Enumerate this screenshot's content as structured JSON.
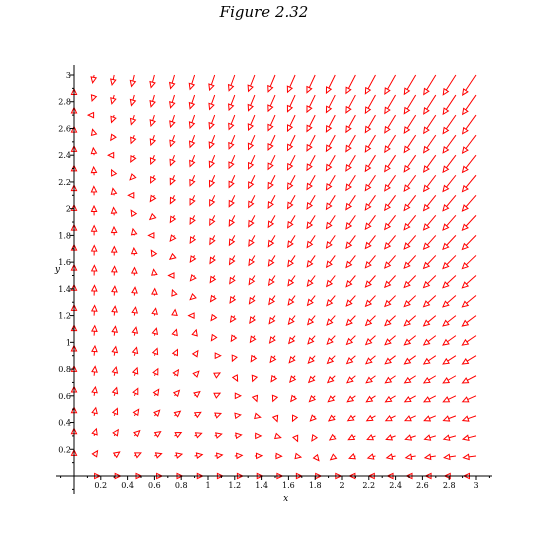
{
  "chart_data": {
    "type": "vector-field",
    "title": "Figure 2.32",
    "xlabel": "x",
    "ylabel": "y",
    "xlim": [
      0,
      3
    ],
    "ylim": [
      0,
      3
    ],
    "x_ticks": [
      "0.2",
      "0.4",
      "0.6",
      "0.8",
      "1",
      "1.2",
      "1.4",
      "1.6",
      "1.8",
      "2",
      "2.2",
      "2.4",
      "2.6",
      "2.8",
      "3"
    ],
    "y_ticks": [
      "0.2",
      "0.4",
      "0.6",
      "0.8",
      "1",
      "1.2",
      "1.4",
      "1.6",
      "1.8",
      "2",
      "2.2",
      "2.4",
      "2.6",
      "2.8",
      "3"
    ],
    "grid": false,
    "arrow_color": "#ff0000",
    "field": {
      "dx": "x*(2 - x - y)",
      "dy": "y*(3 - 2*x - y)"
    },
    "sample_grid": {
      "nx": 20,
      "ny": 20
    }
  }
}
